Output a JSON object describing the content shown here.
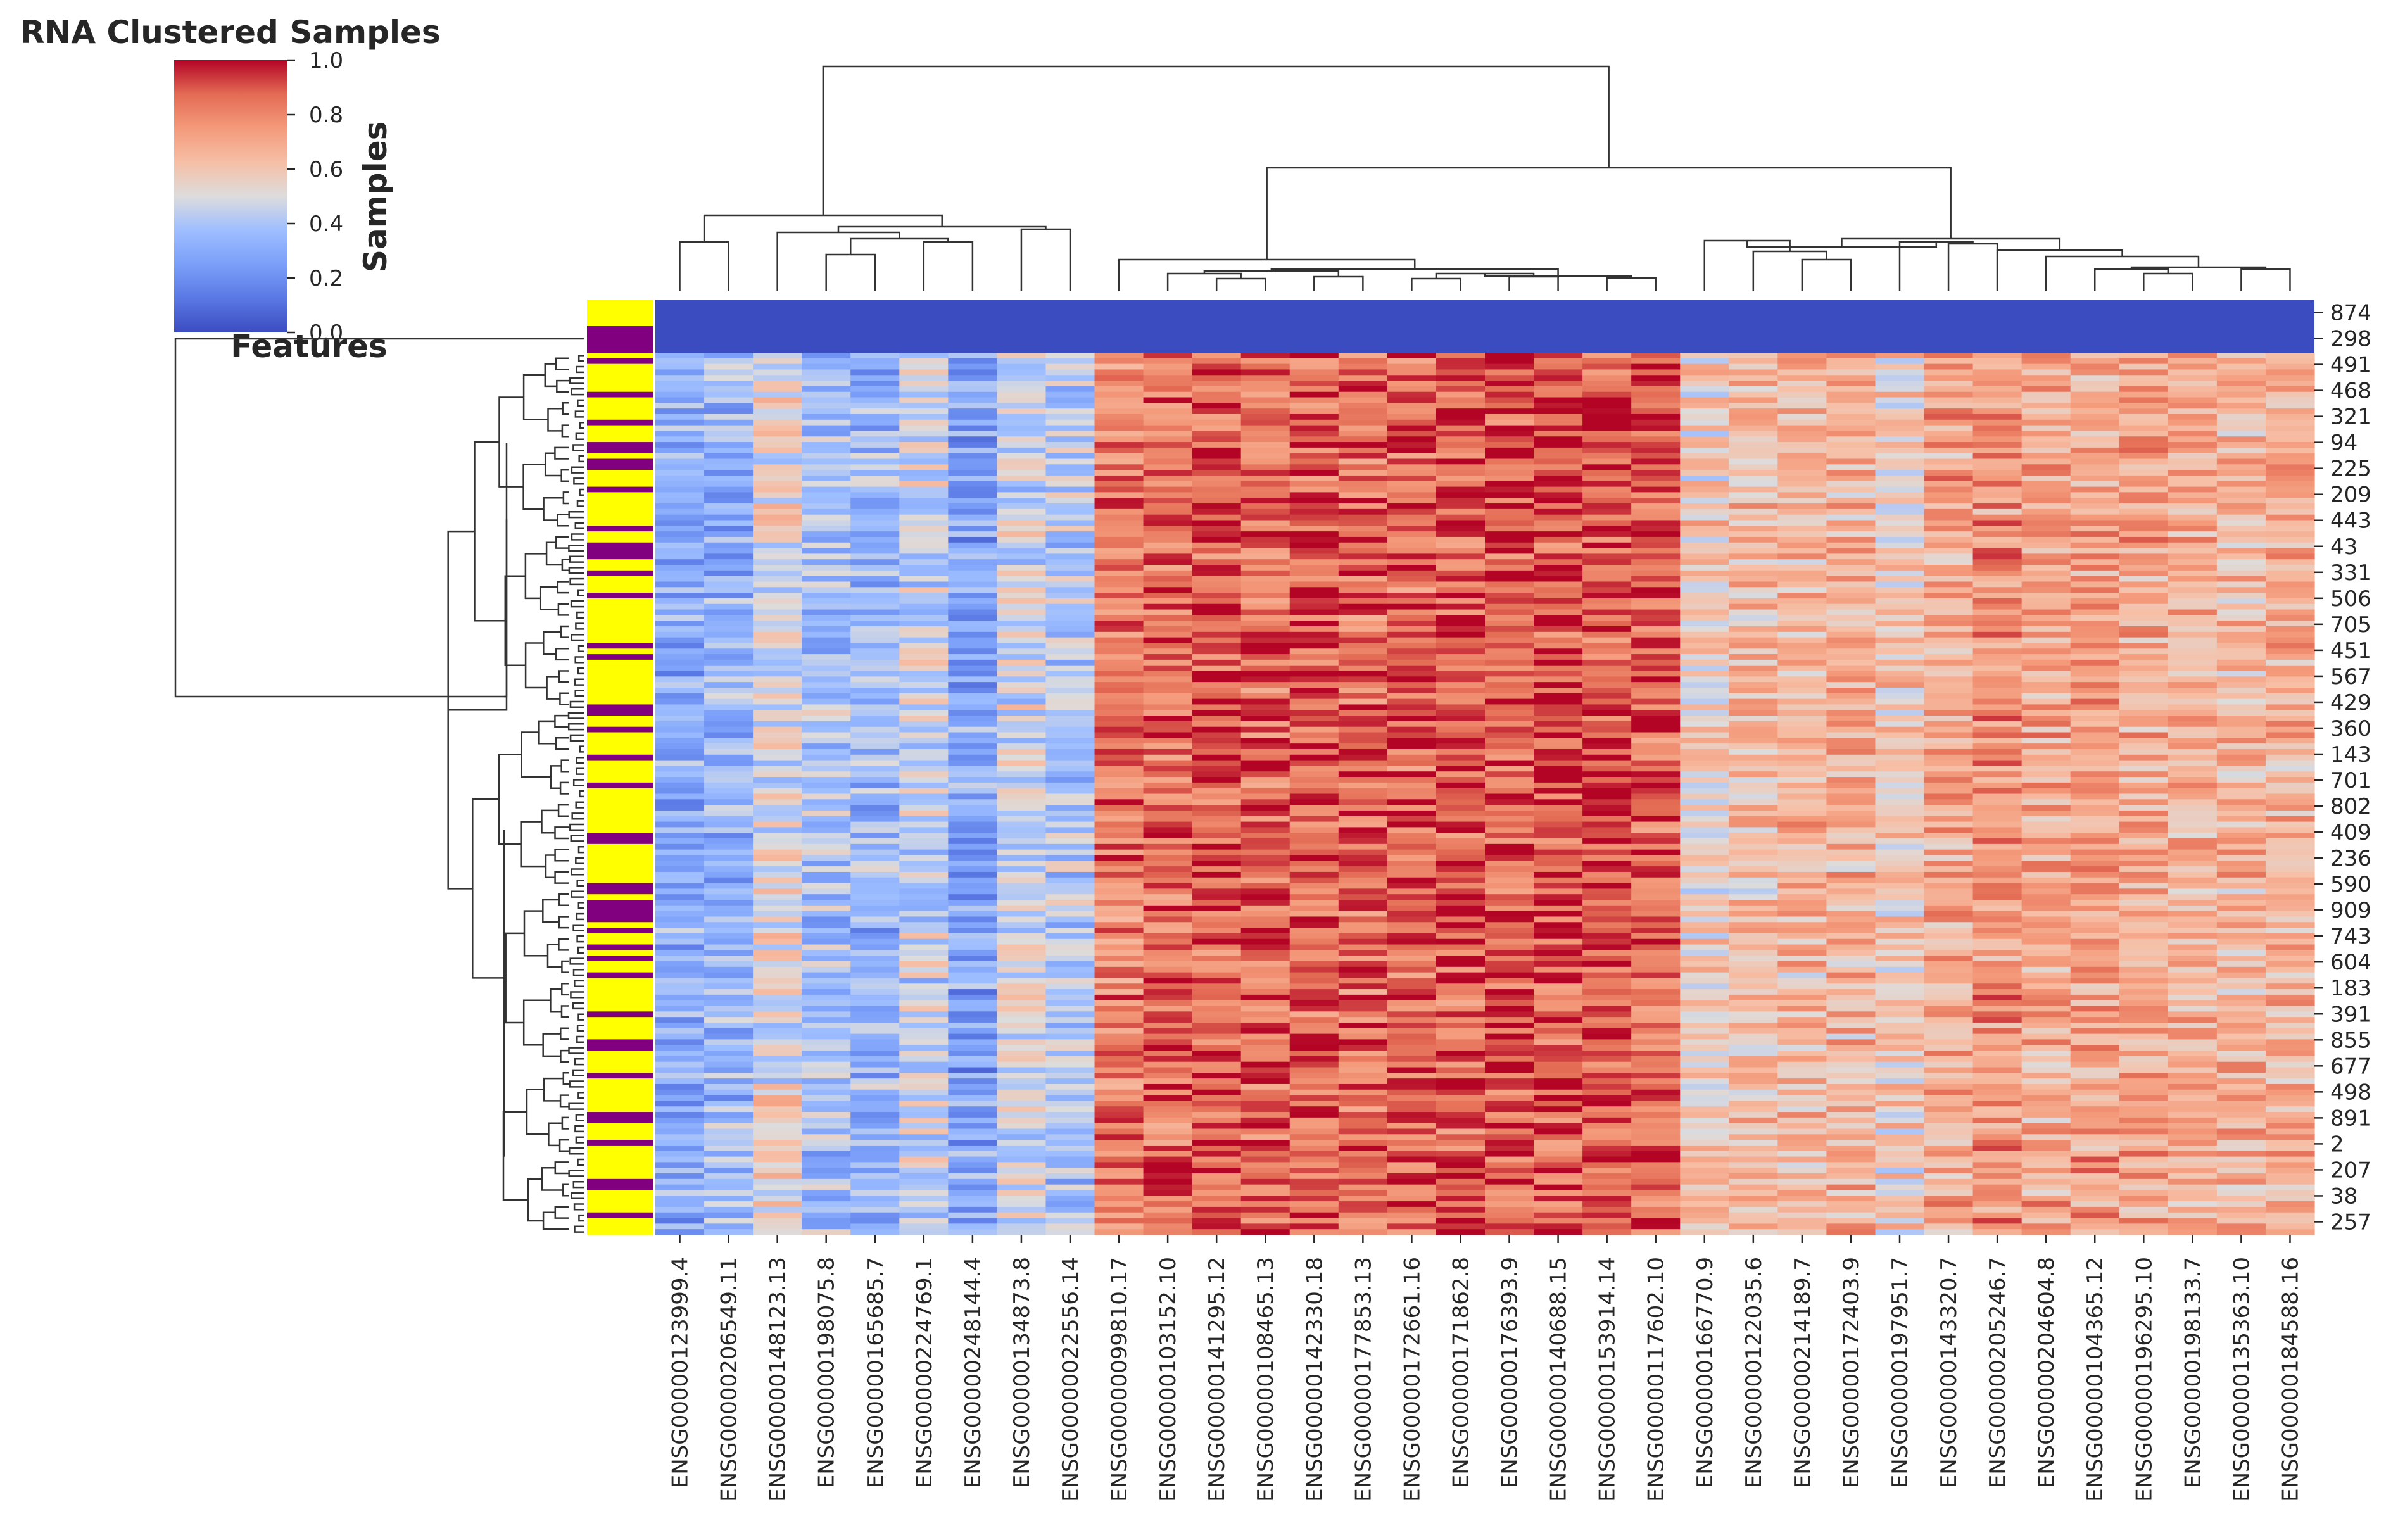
{
  "chart_data": {
    "type": "heatmap",
    "title": "RNA Clustered Samples",
    "xlabel": "Features",
    "ylabel": "Samples",
    "colormap": "coolwarm",
    "colorbar": {
      "range": [
        0.0,
        1.0
      ],
      "ticks": [
        "0.0",
        "0.2",
        "0.4",
        "0.6",
        "0.8",
        "1.0"
      ]
    },
    "columns": [
      "ENSG00000123999.4",
      "ENSG00000206549.11",
      "ENSG00000148123.13",
      "ENSG00000198075.8",
      "ENSG00000165685.7",
      "ENSG00000224769.1",
      "ENSG00000248144.4",
      "ENSG00000134873.8",
      "ENSG00000022556.14",
      "ENSG00000099810.17",
      "ENSG00000103152.10",
      "ENSG00000141295.12",
      "ENSG00000108465.13",
      "ENSG00000142330.18",
      "ENSG00000177853.13",
      "ENSG00000172661.16",
      "ENSG00000171862.8",
      "ENSG00000176393.9",
      "ENSG00000140688.15",
      "ENSG00000153914.14",
      "ENSG00000117602.10",
      "ENSG00000166770.9",
      "ENSG00000122035.6",
      "ENSG00000214189.7",
      "ENSG00000172403.9",
      "ENSG00000197951.7",
      "ENSG00000143320.7",
      "ENSG00000205246.7",
      "ENSG00000204604.8",
      "ENSG00000104365.12",
      "ENSG00000196295.10",
      "ENSG00000198133.7",
      "ENSG00000135363.10",
      "ENSG00000184588.16"
    ],
    "row_labels": [
      "874",
      "298",
      "491",
      "468",
      "321",
      "94",
      "225",
      "209",
      "443",
      "43",
      "331",
      "506",
      "705",
      "451",
      "567",
      "429",
      "360",
      "143",
      "701",
      "802",
      "409",
      "236",
      "590",
      "909",
      "743",
      "604",
      "183",
      "391",
      "855",
      "677",
      "498",
      "891",
      "2",
      "207",
      "38",
      "257"
    ],
    "top_rows": {
      "labels": [
        "874",
        "298"
      ],
      "value": 0.0
    },
    "row_colors": [
      "#ffff00",
      "#800080"
    ],
    "row_color_sequence": [
      0,
      1,
      0,
      0,
      0,
      0,
      0,
      1,
      0,
      0,
      0,
      0,
      1,
      0,
      0,
      0,
      1,
      1,
      0,
      1,
      1,
      0,
      0,
      0,
      1,
      0,
      0,
      0,
      0,
      0,
      0,
      1,
      0,
      0,
      1,
      1,
      1,
      0,
      0,
      1,
      0,
      0,
      0,
      1,
      0,
      0,
      0,
      0,
      0,
      0,
      0,
      0,
      1,
      0,
      1,
      0,
      0,
      0,
      0,
      0,
      0,
      0,
      0,
      1,
      1,
      0,
      0,
      1,
      0,
      0,
      0,
      0,
      1,
      0,
      0,
      0,
      0,
      1,
      0,
      0,
      0,
      0,
      0,
      0,
      0,
      0,
      1,
      1,
      0,
      0,
      0,
      0,
      0,
      0,
      0,
      1,
      1,
      0,
      1,
      1,
      1,
      1,
      0,
      1,
      0,
      0,
      1,
      0,
      1,
      0,
      0,
      1,
      0,
      0,
      0,
      0,
      0,
      0,
      1,
      0,
      0,
      0,
      0,
      1,
      1,
      0,
      0,
      0,
      0,
      1,
      0,
      0,
      0,
      0,
      0,
      0,
      1,
      1,
      0,
      0,
      0,
      1,
      0,
      0,
      0,
      0,
      0,
      0,
      1,
      1,
      0,
      0,
      0,
      0,
      1,
      0,
      0,
      0
    ],
    "column_group_means": [
      0.3,
      0.33,
      0.52,
      0.38,
      0.34,
      0.45,
      0.28,
      0.46,
      0.4,
      0.82,
      0.85,
      0.88,
      0.87,
      0.88,
      0.86,
      0.87,
      0.89,
      0.9,
      0.89,
      0.9,
      0.88,
      0.58,
      0.63,
      0.64,
      0.66,
      0.58,
      0.7,
      0.76,
      0.7,
      0.72,
      0.7,
      0.68,
      0.66,
      0.68
    ]
  }
}
